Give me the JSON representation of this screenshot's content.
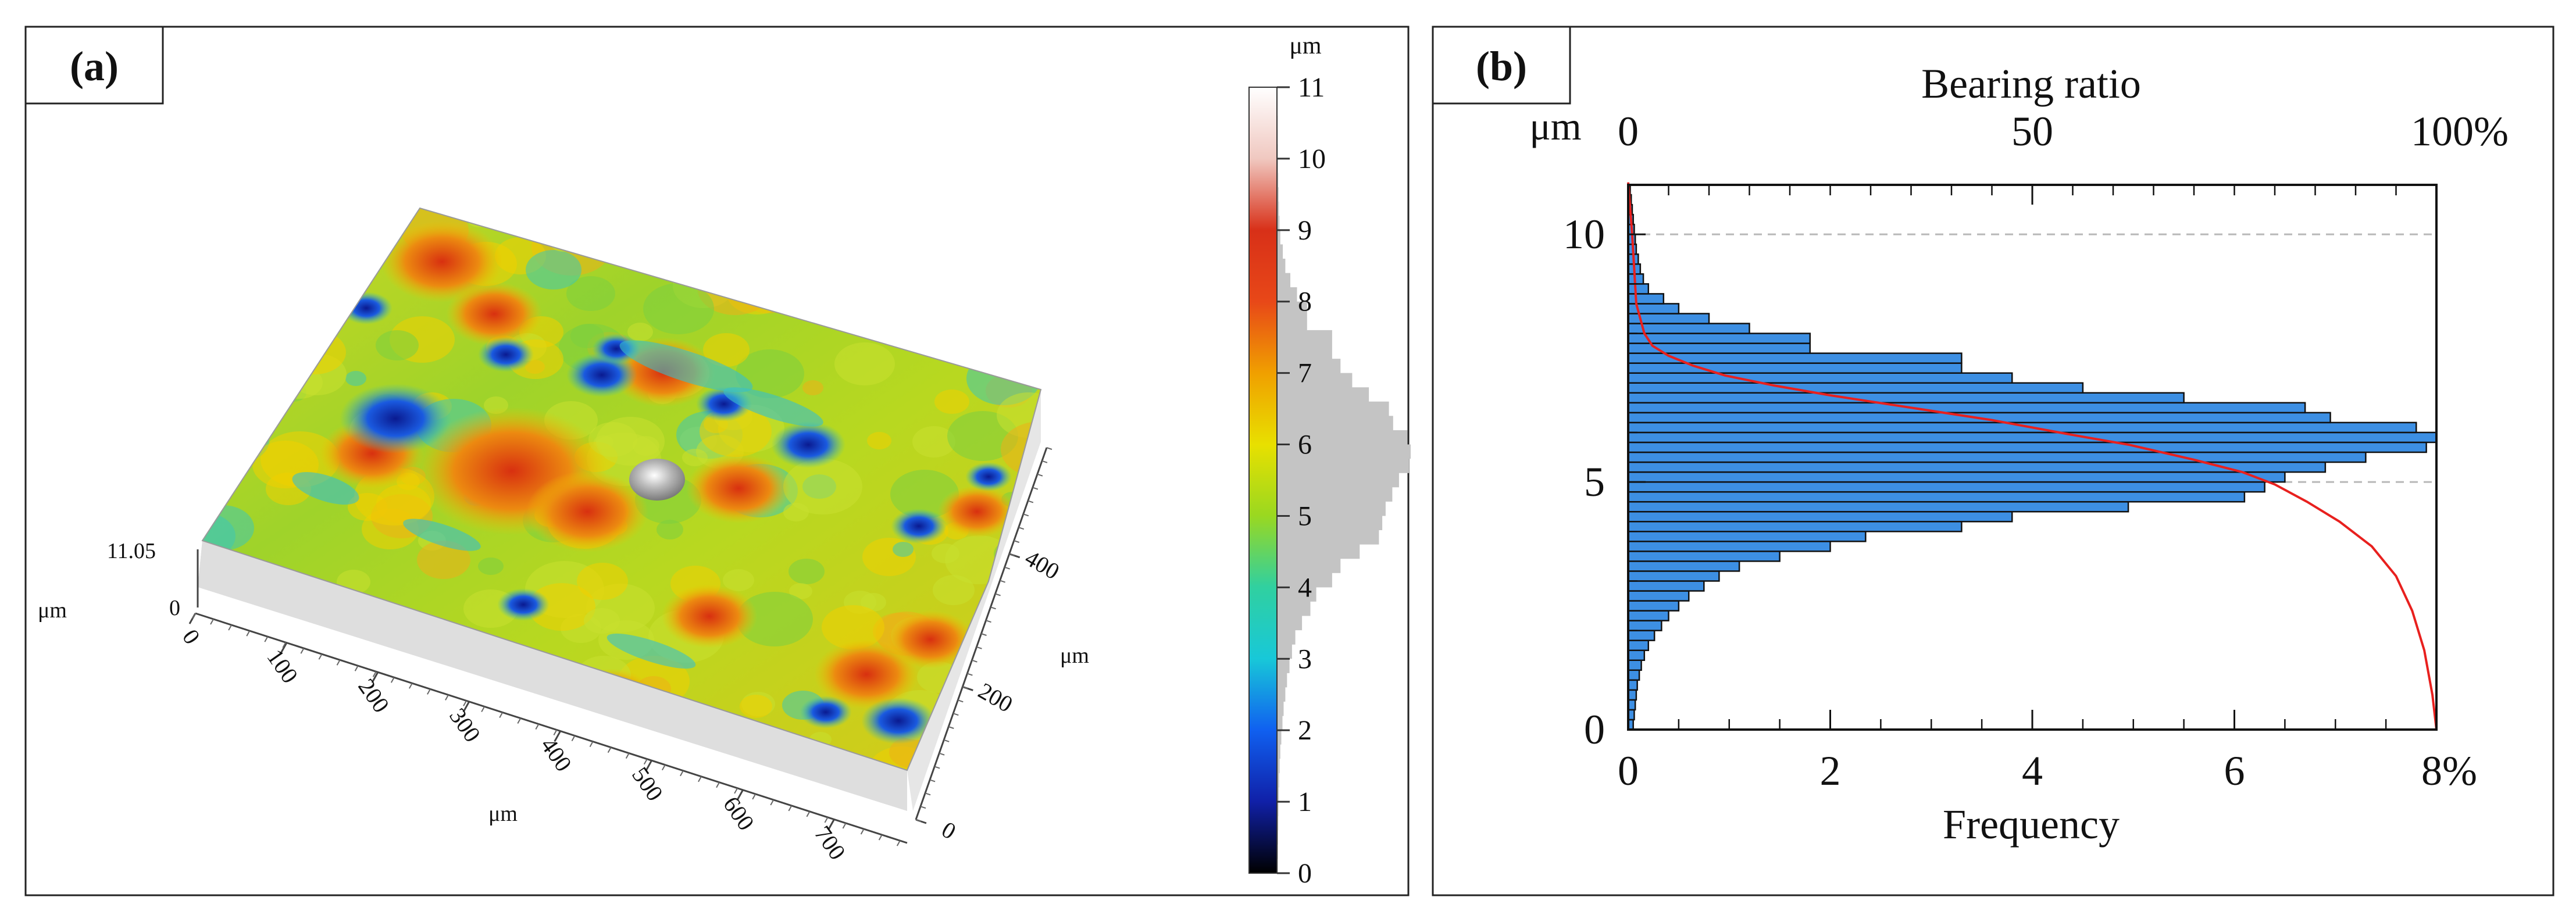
{
  "panel_a": {
    "label": "(a)",
    "colorbar": {
      "unit": "μm",
      "ticks": [
        "0",
        "1",
        "2",
        "3",
        "4",
        "5",
        "6",
        "7",
        "8",
        "9",
        "10",
        "11"
      ],
      "range": [
        0,
        11
      ],
      "stops": [
        "#000000",
        "#1020a8",
        "#1060f0",
        "#18c8d8",
        "#30d0a0",
        "#9ad820",
        "#e8e000",
        "#f0a000",
        "#e84818",
        "#d83018",
        "#f0c8c0",
        "#ffffff"
      ]
    },
    "z_axis": {
      "max_label": "11.05",
      "zero_label": "0",
      "unit": "μm"
    },
    "x_axis": {
      "ticks": [
        "0",
        "100",
        "200",
        "300",
        "400",
        "500",
        "600",
        "700"
      ],
      "unit": "μm"
    },
    "y_axis": {
      "ticks": [
        "0",
        "200",
        "400"
      ],
      "unit": "μm"
    },
    "surface_colors": {
      "low": "#1a3cc8",
      "mid": "#9fd32a",
      "high": "#e0401a",
      "peak": "#c8c8c8",
      "side": "#dcdcdc"
    }
  },
  "chart_data": {
    "type": "bar",
    "orientation": "horizontal",
    "title": "(b)",
    "xlabel": "Frequency",
    "x2label": "Bearing ratio",
    "ylabel": "μm",
    "xlim": [
      0,
      8
    ],
    "x2lim": [
      0,
      100
    ],
    "ylim": [
      0,
      11
    ],
    "xticks": [
      "0",
      "2",
      "4",
      "6",
      "8%"
    ],
    "x2ticks": [
      "0",
      "50",
      "100%"
    ],
    "yticks": [
      "0",
      "5",
      "10"
    ],
    "reference_lines": [
      10,
      5
    ],
    "series": [
      {
        "name": "Frequency",
        "color": "#3d8fe3",
        "bin_width": 0.2,
        "bin_bottoms": [
          0.0,
          0.2,
          0.4,
          0.6,
          0.8,
          1.0,
          1.2,
          1.4,
          1.6,
          1.8,
          2.0,
          2.2,
          2.4,
          2.6,
          2.8,
          3.0,
          3.2,
          3.4,
          3.6,
          3.8,
          4.0,
          4.2,
          4.4,
          4.6,
          4.8,
          5.0,
          5.2,
          5.4,
          5.6,
          5.8,
          6.0,
          6.2,
          6.4,
          6.6,
          6.8,
          7.0,
          7.2,
          7.4,
          7.6,
          7.8,
          8.0,
          8.2,
          8.4,
          8.6,
          8.8,
          9.0,
          9.2,
          9.4,
          9.6,
          9.8,
          10.0,
          10.2,
          10.4,
          10.6,
          10.8
        ],
        "values": [
          0.05,
          0.06,
          0.07,
          0.08,
          0.09,
          0.11,
          0.13,
          0.16,
          0.2,
          0.26,
          0.33,
          0.4,
          0.5,
          0.6,
          0.75,
          0.9,
          1.1,
          1.5,
          2.0,
          2.35,
          3.3,
          3.8,
          4.95,
          6.1,
          6.3,
          6.5,
          6.9,
          7.3,
          7.9,
          8.0,
          7.8,
          6.95,
          6.7,
          5.5,
          4.5,
          3.8,
          3.3,
          3.3,
          1.8,
          1.8,
          1.2,
          0.8,
          0.5,
          0.35,
          0.2,
          0.15,
          0.12,
          0.1,
          0.08,
          0.07,
          0.06,
          0.05,
          0.04,
          0.03,
          0.02
        ]
      },
      {
        "name": "Bearing ratio",
        "color": "#e8201e",
        "x": [
          0,
          0.5,
          1,
          2,
          3,
          5,
          8,
          12,
          18,
          25,
          35,
          45,
          55,
          62,
          70,
          76,
          80,
          84,
          88,
          92,
          95,
          97,
          98.5,
          99.5,
          100
        ],
        "y": [
          11.05,
          10,
          8.6,
          8.0,
          7.75,
          7.55,
          7.35,
          7.15,
          6.95,
          6.75,
          6.5,
          6.25,
          5.95,
          5.75,
          5.45,
          5.2,
          4.95,
          4.6,
          4.2,
          3.7,
          3.1,
          2.4,
          1.6,
          0.7,
          0.0
        ]
      }
    ]
  }
}
